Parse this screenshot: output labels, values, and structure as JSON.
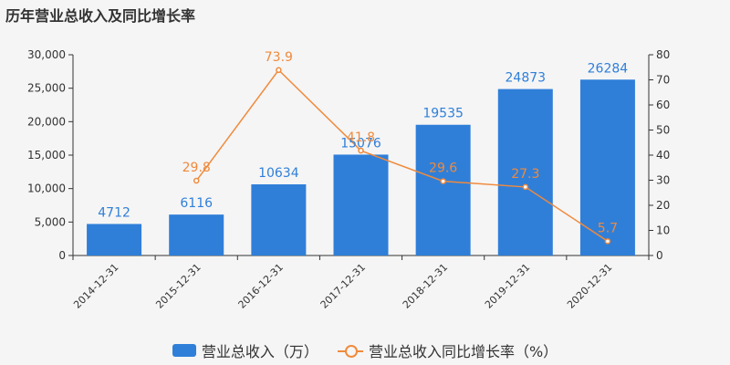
{
  "title": "历年营业总收入及同比增长率",
  "colors": {
    "bar": "#2f7fd9",
    "line": "#f08a3c",
    "axis": "#333333"
  },
  "chart_data": {
    "type": "bar+line",
    "title": "历年营业总收入及同比增长率",
    "categories": [
      "2014-12-31",
      "2015-12-31",
      "2016-12-31",
      "2017-12-31",
      "2018-12-31",
      "2019-12-31",
      "2020-12-31"
    ],
    "series": [
      {
        "name": "营业总收入（万）",
        "type": "bar",
        "axis": "left",
        "values": [
          4712,
          6116,
          10634,
          15076,
          19535,
          24873,
          26284
        ]
      },
      {
        "name": "营业总收入同比增长率（%）",
        "type": "line",
        "axis": "right",
        "values": [
          null,
          29.8,
          73.9,
          41.8,
          29.6,
          27.3,
          5.7
        ]
      }
    ],
    "ylim_left": [
      0,
      30000
    ],
    "yticks_left": [
      0,
      5000,
      10000,
      15000,
      20000,
      25000,
      30000
    ],
    "ytick_labels_left": [
      "0",
      "5,000",
      "10,000",
      "15,000",
      "20,000",
      "25,000",
      "30,000"
    ],
    "ylim_right": [
      0,
      80
    ],
    "yticks_right": [
      0,
      10,
      20,
      30,
      40,
      50,
      60,
      70,
      80
    ],
    "legend_position": "bottom-center",
    "grid": false
  },
  "legend": {
    "bar_label": "营业总收入（万）",
    "line_label": "营业总收入同比增长率（%）"
  }
}
